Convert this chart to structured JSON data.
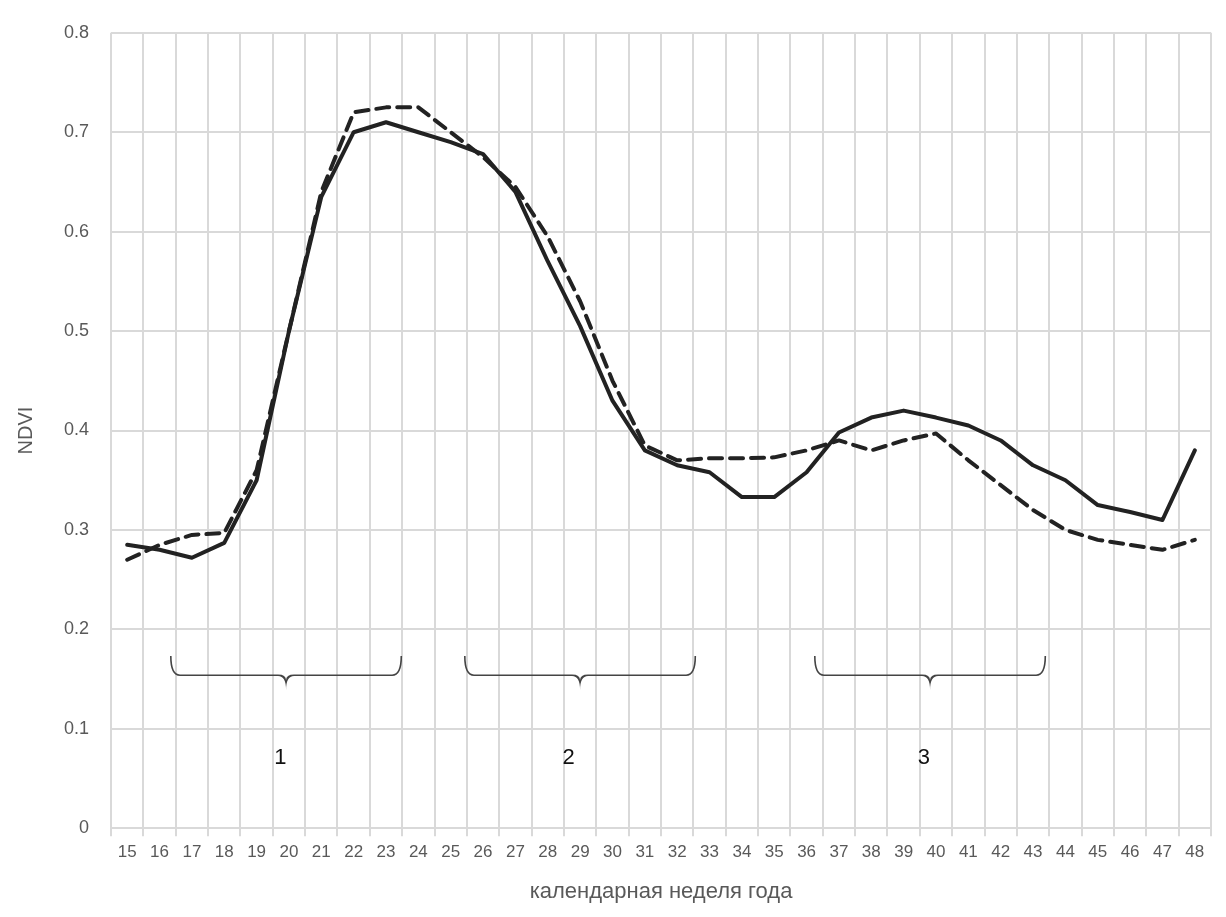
{
  "chart_data": {
    "type": "line",
    "xlabel": "календарная неделя года",
    "ylabel": "NDVI",
    "categories": [
      "15",
      "16",
      "17",
      "18",
      "19",
      "20",
      "21",
      "22",
      "23",
      "24",
      "25",
      "26",
      "27",
      "28",
      "29",
      "30",
      "31",
      "32",
      "33",
      "34",
      "35",
      "36",
      "37",
      "38",
      "39",
      "40",
      "41",
      "42",
      "43",
      "44",
      "45",
      "46",
      "47",
      "48"
    ],
    "series": [
      {
        "color": "#222222",
        "line_style": "solid",
        "values": [
          0.285,
          0.28,
          0.272,
          0.287,
          0.35,
          0.5,
          0.635,
          0.7,
          0.71,
          0.7,
          0.69,
          0.678,
          0.64,
          0.57,
          0.505,
          0.43,
          0.38,
          0.365,
          0.358,
          0.333,
          0.333,
          0.358,
          0.398,
          0.413,
          0.42,
          0.413,
          0.405,
          0.39,
          0.365,
          0.35,
          0.325,
          0.318,
          0.31,
          0.38
        ]
      },
      {
        "color": "#222222",
        "line_style": "dashed",
        "values": [
          0.27,
          0.285,
          0.295,
          0.297,
          0.36,
          0.5,
          0.64,
          0.72,
          0.725,
          0.725,
          0.7,
          0.675,
          0.645,
          0.595,
          0.53,
          0.45,
          0.385,
          0.37,
          0.372,
          0.372,
          0.373,
          0.38,
          0.39,
          0.38,
          0.39,
          0.397,
          0.37,
          0.345,
          0.32,
          0.3,
          0.29,
          0.285,
          0.28,
          0.29
        ]
      }
    ],
    "ylim": [
      0,
      0.8
    ],
    "yticks": [
      0,
      0.1,
      0.2,
      0.3,
      0.4,
      0.5,
      0.6,
      0.7,
      0.8
    ],
    "grid": true,
    "legend": false,
    "marker": "none",
    "annotations": [
      "1",
      "2",
      "3"
    ]
  }
}
